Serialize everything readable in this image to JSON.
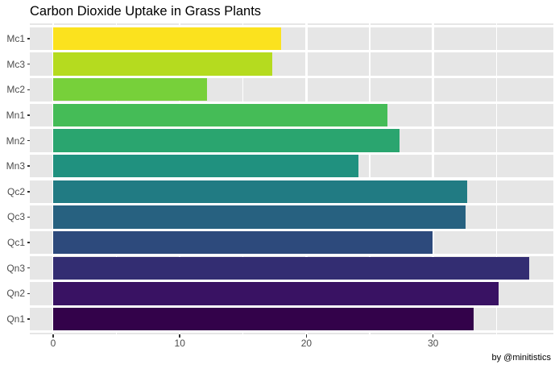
{
  "title": "Carbon Dioxide Uptake in Grass Plants",
  "caption": "by @minitistics",
  "chart_data": {
    "type": "bar",
    "orientation": "horizontal",
    "title": "Carbon Dioxide Uptake in Grass Plants",
    "xlabel": "",
    "ylabel": "",
    "categories": [
      "Mc1",
      "Mc3",
      "Mc2",
      "Mn1",
      "Mn2",
      "Mn3",
      "Qc2",
      "Qc3",
      "Qc1",
      "Qn3",
      "Qn2",
      "Qn1"
    ],
    "values": [
      18.0,
      17.3,
      12.14,
      26.4,
      27.34,
      24.11,
      32.7,
      32.59,
      29.97,
      37.61,
      35.16,
      33.23
    ],
    "bar_colors": [
      "#FBE21E",
      "#B5DB1F",
      "#77D03A",
      "#45BC57",
      "#2AA56F",
      "#20917F",
      "#217B83",
      "#276180",
      "#2D4A7C",
      "#332D72",
      "#391263",
      "#33024A"
    ],
    "xlim": [
      0,
      39.5
    ],
    "x_major_ticks": [
      0,
      10,
      20,
      30
    ],
    "x_major_tick_labels": [
      "0",
      "10",
      "20",
      "30"
    ],
    "x_minor_ticks": [
      5,
      15,
      25,
      35
    ],
    "grid": true,
    "legend": false,
    "panel_bg": "#E6E6E6",
    "grid_color": "#FFFFFF",
    "axis_text_color": "#4D4D4D",
    "tick_color": "#333333"
  }
}
